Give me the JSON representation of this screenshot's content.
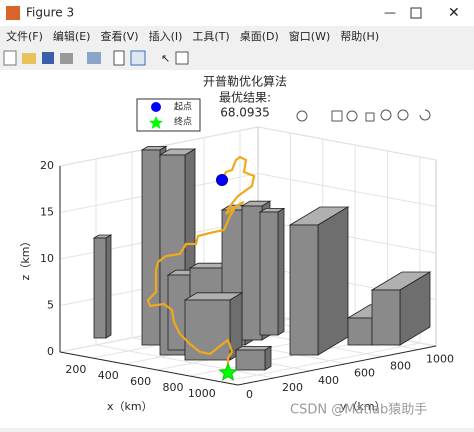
{
  "window": {
    "title": "Figure 3",
    "menu": [
      "文件(F)",
      "编辑(E)",
      "查看(V)",
      "插入(I)",
      "工具(T)",
      "桌面(D)",
      "窗口(W)",
      "帮助(H)"
    ]
  },
  "chart_data": {
    "type": "bar3d",
    "title": [
      "开普勒优化算法",
      "最优结果:",
      "68.0935"
    ],
    "series": [
      {
        "name": "起点",
        "color": "#0000ff"
      },
      {
        "name": "终点",
        "color": "#00ff00"
      }
    ],
    "xlabel": "x（km）",
    "ylabel": "y（km）",
    "zlabel": "z（km）",
    "xlim": [
      0,
      1100
    ],
    "ylim": [
      0,
      1100
    ],
    "zlim": [
      0,
      20
    ],
    "xticks": [
      200,
      400,
      600,
      800,
      1000
    ],
    "yticks": [
      0,
      200,
      400,
      600,
      800,
      1000
    ],
    "zticks": [
      0,
      5,
      10,
      15,
      20
    ],
    "grid": true
  },
  "watermark": "CSDN @Matlab猿助手"
}
